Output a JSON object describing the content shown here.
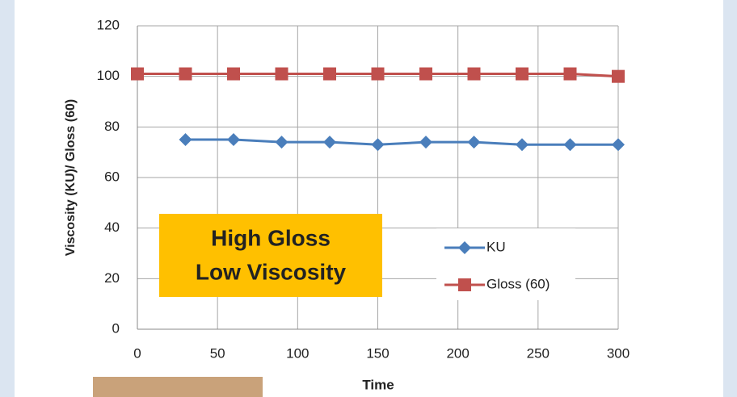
{
  "chart_data": {
    "type": "line",
    "xlabel": "Time",
    "ylabel": "Viscosity (KU)/ Gloss (60)",
    "series": [
      {
        "name": "KU",
        "color": "#4a7ebb",
        "marker": "diamond",
        "x": [
          30,
          60,
          90,
          120,
          150,
          180,
          210,
          240,
          270,
          300
        ],
        "values": [
          75,
          75,
          74,
          74,
          73,
          74,
          74,
          73,
          73,
          73
        ]
      },
      {
        "name": "Gloss (60)",
        "color": "#c0504d",
        "marker": "square",
        "x": [
          0,
          30,
          60,
          90,
          120,
          150,
          180,
          210,
          240,
          270,
          300
        ],
        "values": [
          101,
          101,
          101,
          101,
          101,
          101,
          101,
          101,
          101,
          101,
          100
        ]
      }
    ],
    "xlim": [
      0,
      300
    ],
    "xticks": [
      0,
      50,
      100,
      150,
      200,
      250,
      300
    ],
    "ylim": [
      0,
      120
    ],
    "yticks": [
      0,
      20,
      40,
      60,
      80,
      100,
      120
    ],
    "grid": true,
    "annotations": [
      {
        "text": "High Gloss",
        "color": "#c00000"
      },
      {
        "text": "Low Viscosity",
        "color": "#5b8bd0"
      }
    ]
  }
}
